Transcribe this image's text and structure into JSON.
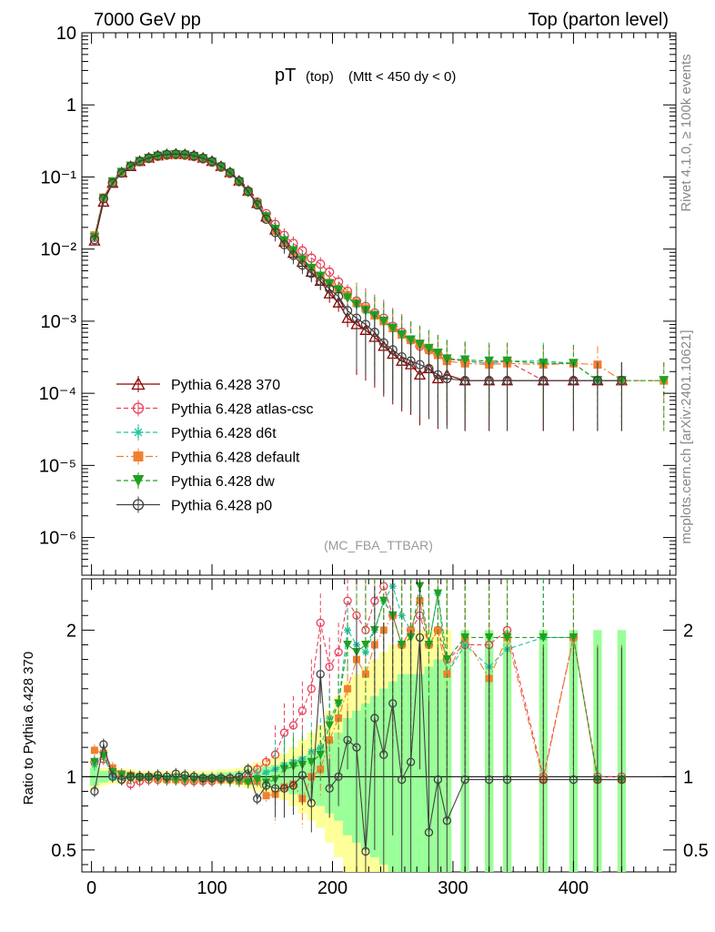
{
  "header": {
    "left_label": "7000 GeV pp",
    "right_label": "Top (parton level)",
    "plot_title_main": "pT",
    "plot_title_sub1": "(top)",
    "plot_title_sub2": "(Mtt < 450 dy < 0)",
    "analysis_tag": "(MC_FBA_TTBAR)",
    "side_rivet": "Rivet 4.1.0, ≥ 100k events",
    "side_mcplots": "mcplots.cern.ch [arXiv:2401.10621]",
    "ratio_ylabel": "Ratio to Pythia 6.428 370"
  },
  "chart_data": [
    {
      "type": "line",
      "scale": "log",
      "title": "pT (top) (Mtt < 450 dy < 0)",
      "xlabel": "",
      "ylabel": "",
      "xlim": [
        -8,
        485
      ],
      "ylim": [
        3e-07,
        10
      ],
      "xticks": [
        0,
        100,
        200,
        300,
        400
      ],
      "yticks": [
        {
          "value": 10,
          "label": "10"
        },
        {
          "value": 1,
          "label": "1"
        },
        {
          "value": 0.1,
          "label": "10⁻¹"
        },
        {
          "value": 0.01,
          "label": "10⁻²"
        },
        {
          "value": 0.001,
          "label": "10⁻³"
        },
        {
          "value": 0.0001,
          "label": "10⁻⁴"
        },
        {
          "value": 1e-05,
          "label": "10⁻⁵"
        },
        {
          "value": 1e-06,
          "label": "10⁻⁶"
        }
      ],
      "legend_position": "bottom-left",
      "x": [
        2.5,
        10,
        17.5,
        25,
        32.5,
        40,
        47.5,
        55,
        62.5,
        70,
        77.5,
        85,
        92.5,
        100,
        107.5,
        115,
        122.5,
        130,
        137.5,
        145,
        152.5,
        160,
        167.5,
        175,
        182.5,
        190,
        197.5,
        205,
        212.5,
        220,
        227.5,
        235,
        242.5,
        250,
        257.5,
        265,
        272.5,
        280,
        287.5,
        295,
        310,
        330,
        345,
        375,
        400,
        420,
        440,
        475
      ],
      "series": [
        {
          "name": "Pythia 6.428 370",
          "color": "#8b0000",
          "marker": "triangle-open",
          "dash": "solid",
          "values": [
            0.013,
            0.045,
            0.082,
            0.115,
            0.14,
            0.165,
            0.183,
            0.197,
            0.205,
            0.208,
            0.205,
            0.197,
            0.183,
            0.165,
            0.14,
            0.115,
            0.088,
            0.064,
            0.043,
            0.028,
            0.0185,
            0.0125,
            0.0088,
            0.0066,
            0.0048,
            0.0036,
            0.0024,
            0.0018,
            0.0011,
            0.0009,
            0.00075,
            0.0006,
            0.00045,
            0.00035,
            0.00028,
            0.00025,
            0.00018,
            0.00022,
            0.00016,
            0.00018,
            0.00015,
            0.00015,
            0.00015,
            0.00015,
            0.00015,
            0.00015,
            0.00015,
            null
          ]
        },
        {
          "name": "Pythia 6.428 atlas-csc",
          "color": "#e8405a",
          "marker": "circle-open",
          "dash": "dashed",
          "values": [
            0.0145,
            0.05,
            0.085,
            0.116,
            0.14,
            0.163,
            0.18,
            0.193,
            0.2,
            0.203,
            0.2,
            0.192,
            0.178,
            0.16,
            0.136,
            0.112,
            0.086,
            0.064,
            0.045,
            0.031,
            0.022,
            0.0155,
            0.012,
            0.0095,
            0.0075,
            0.0062,
            0.0048,
            0.0035,
            0.0026,
            0.0019,
            0.0016,
            0.0013,
            0.0011,
            0.00085,
            0.0007,
            0.00055,
            0.00045,
            0.0004,
            0.00035,
            0.0003,
            0.00028,
            0.00026,
            0.00028,
            0.00015,
            0.00015,
            0.00015,
            0.00015,
            null
          ]
        },
        {
          "name": "Pythia 6.428 d6t",
          "color": "#20c0a0",
          "marker": "star",
          "dash": "dashed",
          "values": [
            0.0145,
            0.05,
            0.086,
            0.117,
            0.142,
            0.165,
            0.182,
            0.195,
            0.202,
            0.205,
            0.202,
            0.194,
            0.18,
            0.162,
            0.138,
            0.113,
            0.086,
            0.062,
            0.043,
            0.029,
            0.0195,
            0.0135,
            0.0098,
            0.0074,
            0.0056,
            0.0043,
            0.0034,
            0.0027,
            0.0022,
            0.0017,
            0.0014,
            0.0012,
            0.001,
            0.0008,
            0.00065,
            0.00055,
            0.00048,
            0.00042,
            0.00036,
            0.00031,
            0.00028,
            0.00026,
            0.00028,
            0.00028,
            0.00026,
            0.00015,
            0.00015,
            null
          ]
        },
        {
          "name": "Pythia 6.428 default",
          "color": "#f08030",
          "marker": "square",
          "dash": "dashdot",
          "values": [
            0.0155,
            0.052,
            0.087,
            0.117,
            0.142,
            0.165,
            0.182,
            0.194,
            0.201,
            0.204,
            0.201,
            0.193,
            0.18,
            0.162,
            0.138,
            0.113,
            0.086,
            0.062,
            0.042,
            0.027,
            0.018,
            0.0125,
            0.0092,
            0.007,
            0.0054,
            0.0042,
            0.0034,
            0.0028,
            0.0023,
            0.0018,
            0.0015,
            0.0012,
            0.001,
            0.0008,
            0.00065,
            0.00055,
            0.00047,
            0.0004,
            0.00034,
            0.00028,
            0.00026,
            0.00025,
            0.00026,
            0.00025,
            0.00026,
            0.00025,
            0.00015,
            0.00015
          ]
        },
        {
          "name": "Pythia 6.428 dw",
          "color": "#20a020",
          "marker": "triangle-down",
          "dash": "dashed",
          "values": [
            0.0145,
            0.05,
            0.085,
            0.116,
            0.141,
            0.164,
            0.181,
            0.194,
            0.201,
            0.204,
            0.201,
            0.193,
            0.179,
            0.161,
            0.137,
            0.112,
            0.085,
            0.061,
            0.042,
            0.028,
            0.0188,
            0.013,
            0.0095,
            0.0071,
            0.0054,
            0.0042,
            0.0033,
            0.0027,
            0.0021,
            0.0017,
            0.0014,
            0.0012,
            0.001,
            0.0008,
            0.00065,
            0.00055,
            0.00048,
            0.00042,
            0.00036,
            0.0003,
            0.00029,
            0.00028,
            0.00028,
            0.00026,
            0.00026,
            0.00015,
            0.00015,
            0.00015
          ]
        },
        {
          "name": "Pythia 6.428 p0",
          "color": "#404040",
          "marker": "circle-open",
          "dash": "solid",
          "values": [
            0.0135,
            0.05,
            0.082,
            0.113,
            0.14,
            0.165,
            0.183,
            0.197,
            0.205,
            0.208,
            0.205,
            0.196,
            0.182,
            0.164,
            0.14,
            0.115,
            0.088,
            0.063,
            0.041,
            0.026,
            0.017,
            0.0115,
            0.0082,
            0.006,
            0.0046,
            0.0036,
            0.0028,
            0.0022,
            0.0014,
            0.0011,
            0.0009,
            0.0007,
            0.0005,
            0.0004,
            0.00032,
            0.00028,
            0.00025,
            0.00022,
            0.00018,
            0.00016,
            0.00015,
            0.00015,
            0.00015,
            0.00015,
            0.00015,
            0.00015,
            0.00015,
            null
          ]
        }
      ]
    },
    {
      "type": "line",
      "title": "",
      "xlabel": "",
      "ylabel": "Ratio to Pythia 6.428 370",
      "xlim": [
        -8,
        485
      ],
      "ylim": [
        0.35,
        2.35
      ],
      "xticks": [
        0,
        100,
        200,
        300,
        400
      ],
      "yticks": [
        0.5,
        1,
        2
      ],
      "reference_line": 1,
      "x": [
        2.5,
        10,
        17.5,
        25,
        32.5,
        40,
        47.5,
        55,
        62.5,
        70,
        77.5,
        85,
        92.5,
        100,
        107.5,
        115,
        122.5,
        130,
        137.5,
        145,
        152.5,
        160,
        167.5,
        175,
        182.5,
        190,
        197.5,
        205,
        212.5,
        220,
        227.5,
        235,
        242.5,
        250,
        257.5,
        265,
        272.5,
        280,
        287.5,
        295,
        310,
        330,
        345,
        375,
        400,
        420,
        440
      ],
      "band_x": [
        2.5,
        10,
        17.5,
        25,
        32.5,
        40,
        47.5,
        55,
        62.5,
        70,
        77.5,
        85,
        92.5,
        100,
        107.5,
        115,
        122.5,
        130,
        137.5,
        145,
        152.5,
        160,
        167.5,
        175,
        182.5,
        190,
        197.5,
        205,
        212.5,
        220,
        227.5,
        235,
        242.5,
        250,
        257.5,
        265,
        272.5,
        280,
        287.5,
        295,
        310,
        330,
        345,
        375,
        400,
        420,
        440
      ],
      "band_stat": [
        0.06,
        0.04,
        0.03,
        0.03,
        0.03,
        0.02,
        0.02,
        0.02,
        0.02,
        0.02,
        0.02,
        0.02,
        0.02,
        0.02,
        0.03,
        0.03,
        0.04,
        0.05,
        0.06,
        0.07,
        0.08,
        0.1,
        0.12,
        0.14,
        0.16,
        0.2,
        0.25,
        0.3,
        0.4,
        0.45,
        0.5,
        0.55,
        0.6,
        0.65,
        0.7,
        0.7,
        0.7,
        0.75,
        0.8,
        0.8,
        1,
        1,
        1,
        1,
        1,
        1,
        1
      ],
      "band_total": [
        0.09,
        0.06,
        0.05,
        0.05,
        0.05,
        0.04,
        0.04,
        0.04,
        0.04,
        0.04,
        0.04,
        0.04,
        0.04,
        0.04,
        0.05,
        0.05,
        0.06,
        0.08,
        0.1,
        0.12,
        0.14,
        0.16,
        0.2,
        0.25,
        0.3,
        0.35,
        0.45,
        0.55,
        0.65,
        0.7,
        0.75,
        0.8,
        0.85,
        0.9,
        0.9,
        0.95,
        1,
        1,
        1,
        1,
        1,
        1,
        1,
        1,
        1,
        1,
        1
      ],
      "series": [
        {
          "name": "Pythia 6.428 atlas-csc",
          "color": "#e8405a",
          "marker": "circle-open",
          "dash": "dashed",
          "values": [
            1.1,
            1.12,
            1.03,
            0.98,
            0.95,
            0.97,
            0.98,
            0.98,
            0.98,
            0.98,
            0.97,
            0.97,
            0.97,
            0.97,
            0.98,
            0.98,
            0.98,
            1.0,
            1.05,
            1.1,
            1.15,
            1.3,
            1.35,
            1.45,
            1.6,
            2.05,
            1.75,
            1.85,
            2.2,
            2.1,
            2.0,
            2.2,
            2.3,
            2.1,
            1.9,
            2.0,
            2.1,
            1.9,
            2.0,
            1.8,
            1.9,
            1.9,
            2.0,
            1.0,
            1.95,
            1.0,
            1.0
          ]
        },
        {
          "name": "Pythia 6.428 d6t",
          "color": "#20c0a0",
          "marker": "star",
          "dash": "dashed",
          "values": [
            1.08,
            1.15,
            1.0,
            1.0,
            0.99,
            1.0,
            0.99,
            0.99,
            0.99,
            0.99,
            0.99,
            0.99,
            0.98,
            0.98,
            0.99,
            0.98,
            0.98,
            0.97,
            1.0,
            1.03,
            1.05,
            1.08,
            1.1,
            1.12,
            1.17,
            1.2,
            1.4,
            1.5,
            2.0,
            1.9,
            1.85,
            2.0,
            2.2,
            2.3,
            2.1,
            2.0,
            2.2,
            1.9,
            2.25,
            1.7,
            1.9,
            1.75,
            1.87,
            1.95,
            1.95,
            0.98,
            0.98
          ]
        },
        {
          "name": "Pythia 6.428 default",
          "color": "#f08030",
          "marker": "square",
          "dash": "dashdot",
          "values": [
            1.18,
            1.16,
            1.06,
            1.02,
            1.01,
            1.0,
            1.0,
            0.99,
            0.98,
            0.98,
            0.98,
            0.98,
            0.98,
            0.98,
            0.98,
            0.98,
            0.97,
            0.97,
            0.97,
            0.87,
            0.88,
            0.93,
            0.95,
            0.85,
            1.0,
            1.05,
            1.25,
            1.4,
            1.6,
            1.8,
            1.7,
            1.9,
            2.0,
            2.1,
            1.9,
            2.0,
            2.2,
            1.9,
            2.0,
            1.7,
            1.95,
            1.67,
            1.95,
            0.98,
            1.95,
            0.98,
            0.98
          ]
        },
        {
          "name": "Pythia 6.428 dw",
          "color": "#20a020",
          "marker": "triangle-down",
          "dash": "dashed",
          "values": [
            1.1,
            1.14,
            1.03,
            1.01,
            1.0,
            0.99,
            0.99,
            0.99,
            0.98,
            0.98,
            0.98,
            0.98,
            0.98,
            0.98,
            0.98,
            0.97,
            0.97,
            0.96,
            0.98,
            0.96,
            0.98,
            1.05,
            1.07,
            1.08,
            1.1,
            1.15,
            1.35,
            1.5,
            1.9,
            1.85,
            1.9,
            2.0,
            2.2,
            2.1,
            1.9,
            1.95,
            2.3,
            1.9,
            2.25,
            1.8,
            1.95,
            1.95,
            1.95,
            1.95,
            1.95,
            0.98,
            0.98
          ]
        },
        {
          "name": "Pythia 6.428 p0",
          "color": "#404040",
          "marker": "circle-open",
          "dash": "solid",
          "values": [
            0.9,
            1.22,
            1.0,
            0.98,
            1.0,
            1.0,
            1.0,
            1.01,
            1.0,
            1.02,
            1.01,
            1.0,
            0.99,
            0.99,
            0.99,
            0.99,
            1.0,
            1.05,
            0.85,
            0.94,
            0.92,
            0.92,
            0.94,
            1.01,
            0.82,
            1.7,
            0.92,
            1.0,
            1.25,
            1.2,
            0.49,
            1.4,
            1.15,
            1.5,
            0.98,
            1.1,
            1.95,
            0.62,
            0.98,
            0.7,
            0.98,
            0.98,
            0.98,
            0.98,
            0.98,
            0.98,
            0.98
          ]
        }
      ]
    }
  ]
}
